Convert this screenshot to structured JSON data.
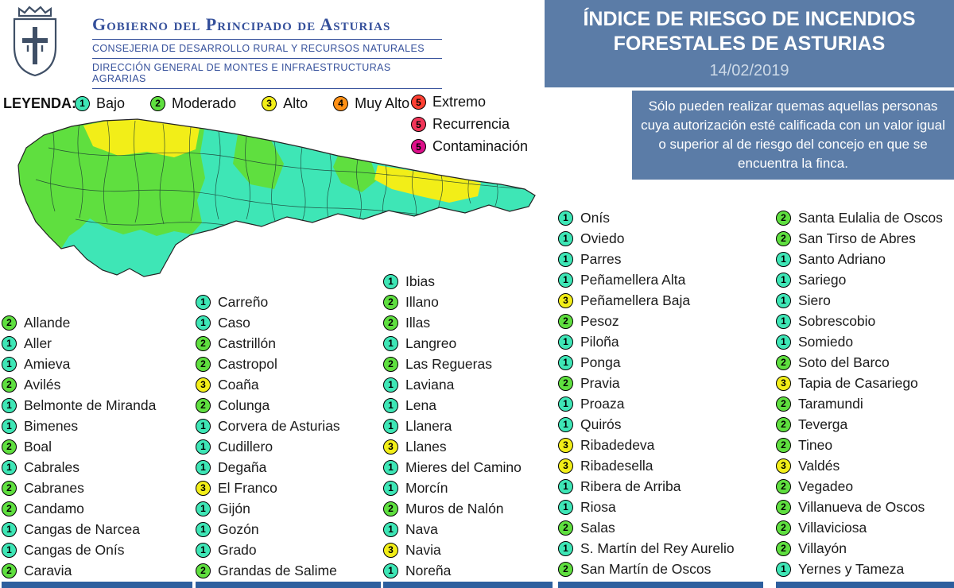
{
  "header": {
    "gov_title": "Gobierno del Principado de Asturias",
    "dept_line1": "CONSEJERIA DE DESARROLLO RURAL Y RECURSOS NATURALES",
    "dept_line2": "DIRECCIÓN GENERAL DE MONTES E INFRAESTRUCTURAS AGRARIAS",
    "title_line1": "ÍNDICE DE RIESGO DE INCENDIOS",
    "title_line2": "FORESTALES DE ASTURIAS",
    "date": "14/02/2019"
  },
  "notice": "Sólo pueden realizar quemas aquellas personas cuya autorización esté calificada con un valor igual o superior al de riesgo del concejo en que se encuentra la finca.",
  "legend": {
    "label": "LEYENDA:",
    "items": [
      {
        "level": "1",
        "label": "Bajo",
        "color": "#3ee6b6"
      },
      {
        "level": "2",
        "label": "Moderado",
        "color": "#5fdf3f"
      },
      {
        "level": "3",
        "label": "Alto",
        "color": "#f2ee18"
      },
      {
        "level": "4",
        "label": "Muy Alto",
        "color": "#ff9015"
      },
      {
        "level": "5",
        "label": "Extremo",
        "color": "#ff4033"
      },
      {
        "level": "5",
        "label": "Recurrencia",
        "color": "#f23558"
      },
      {
        "level": "5",
        "label": "Contaminación",
        "color": "#dd0f8a"
      }
    ]
  },
  "risk_colors": {
    "1": "#3ee6b6",
    "2": "#5fdf3f",
    "3": "#f2ee18",
    "4": "#ff9015",
    "5": "#ff4033"
  },
  "municipalities": {
    "columns": [
      {
        "name": "col1",
        "items": [
          {
            "level": "2",
            "name": "Allande"
          },
          {
            "level": "1",
            "name": "Aller"
          },
          {
            "level": "1",
            "name": "Amieva"
          },
          {
            "level": "2",
            "name": "Avilés"
          },
          {
            "level": "1",
            "name": "Belmonte de Miranda"
          },
          {
            "level": "1",
            "name": "Bimenes"
          },
          {
            "level": "2",
            "name": "Boal"
          },
          {
            "level": "1",
            "name": "Cabrales"
          },
          {
            "level": "2",
            "name": "Cabranes"
          },
          {
            "level": "2",
            "name": "Candamo"
          },
          {
            "level": "1",
            "name": "Cangas de Narcea"
          },
          {
            "level": "1",
            "name": "Cangas de Onís"
          },
          {
            "level": "2",
            "name": "Caravia"
          }
        ]
      },
      {
        "name": "col2",
        "items": [
          {
            "level": "1",
            "name": "Carreño"
          },
          {
            "level": "1",
            "name": "Caso"
          },
          {
            "level": "2",
            "name": "Castrillón"
          },
          {
            "level": "2",
            "name": "Castropol"
          },
          {
            "level": "3",
            "name": "Coaña"
          },
          {
            "level": "2",
            "name": "Colunga"
          },
          {
            "level": "1",
            "name": "Corvera de Asturias"
          },
          {
            "level": "1",
            "name": "Cudillero"
          },
          {
            "level": "1",
            "name": "Degaña"
          },
          {
            "level": "3",
            "name": "El Franco"
          },
          {
            "level": "1",
            "name": "Gijón"
          },
          {
            "level": "1",
            "name": "Gozón"
          },
          {
            "level": "1",
            "name": "Grado"
          },
          {
            "level": "2",
            "name": "Grandas de Salime"
          }
        ]
      },
      {
        "name": "col3",
        "items": [
          {
            "level": "1",
            "name": "Ibias"
          },
          {
            "level": "2",
            "name": "Illano"
          },
          {
            "level": "2",
            "name": "Illas"
          },
          {
            "level": "1",
            "name": "Langreo"
          },
          {
            "level": "2",
            "name": "Las Regueras"
          },
          {
            "level": "1",
            "name": "Laviana"
          },
          {
            "level": "1",
            "name": "Lena"
          },
          {
            "level": "1",
            "name": "Llanera"
          },
          {
            "level": "3",
            "name": "Llanes"
          },
          {
            "level": "1",
            "name": "Mieres del Camino"
          },
          {
            "level": "1",
            "name": "Morcín"
          },
          {
            "level": "2",
            "name": "Muros de Nalón"
          },
          {
            "level": "1",
            "name": "Nava"
          },
          {
            "level": "3",
            "name": "Navia"
          },
          {
            "level": "1",
            "name": "Noreña"
          }
        ]
      },
      {
        "name": "col4",
        "items": [
          {
            "level": "1",
            "name": "Onís"
          },
          {
            "level": "1",
            "name": "Oviedo"
          },
          {
            "level": "1",
            "name": "Parres"
          },
          {
            "level": "1",
            "name": "Peñamellera Alta"
          },
          {
            "level": "3",
            "name": "Peñamellera Baja"
          },
          {
            "level": "2",
            "name": "Pesoz"
          },
          {
            "level": "1",
            "name": "Piloña"
          },
          {
            "level": "1",
            "name": "Ponga"
          },
          {
            "level": "2",
            "name": "Pravia"
          },
          {
            "level": "1",
            "name": "Proaza"
          },
          {
            "level": "1",
            "name": "Quirós"
          },
          {
            "level": "3",
            "name": "Ribadedeva"
          },
          {
            "level": "3",
            "name": "Ribadesella"
          },
          {
            "level": "1",
            "name": "Ribera de Arriba"
          },
          {
            "level": "1",
            "name": "Riosa"
          },
          {
            "level": "2",
            "name": "Salas"
          },
          {
            "level": "1",
            "name": "S. Martín del Rey Aurelio"
          },
          {
            "level": "2",
            "name": "San Martín de Oscos"
          }
        ]
      },
      {
        "name": "col5",
        "items": [
          {
            "level": "2",
            "name": "Santa Eulalia de Oscos"
          },
          {
            "level": "2",
            "name": "San Tirso de Abres"
          },
          {
            "level": "1",
            "name": "Santo Adriano"
          },
          {
            "level": "1",
            "name": "Sariego"
          },
          {
            "level": "1",
            "name": "Siero"
          },
          {
            "level": "1",
            "name": "Sobrescobio"
          },
          {
            "level": "1",
            "name": "Somiedo"
          },
          {
            "level": "2",
            "name": "Soto del Barco"
          },
          {
            "level": "3",
            "name": "Tapia de Casariego"
          },
          {
            "level": "2",
            "name": "Taramundi"
          },
          {
            "level": "2",
            "name": "Teverga"
          },
          {
            "level": "2",
            "name": "Tineo"
          },
          {
            "level": "3",
            "name": "Valdés"
          },
          {
            "level": "2",
            "name": "Vegadeo"
          },
          {
            "level": "2",
            "name": "Villanueva de Oscos"
          },
          {
            "level": "2",
            "name": "Villaviciosa"
          },
          {
            "level": "2",
            "name": "Villayón"
          },
          {
            "level": "1",
            "name": "Yernes y Tameza"
          }
        ]
      }
    ]
  }
}
